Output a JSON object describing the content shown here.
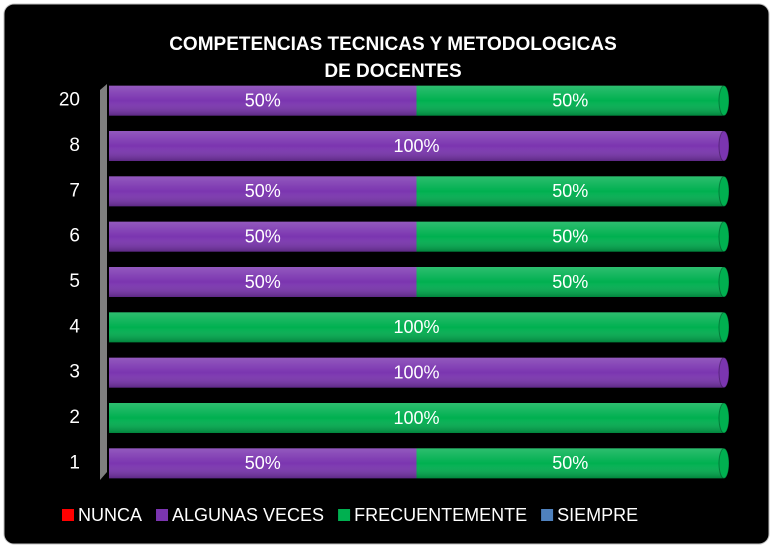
{
  "chart_data": {
    "type": "stacked-bar-horizontal",
    "title": "COMPETENCIAS TECNICAS Y METODOLOGICAS",
    "subtitle": "DE DOCENTES",
    "categories": [
      "20",
      "8",
      "7",
      "6",
      "5",
      "4",
      "3",
      "2",
      "1"
    ],
    "series": [
      {
        "name": "NUNCA",
        "color": "#ff0000",
        "values": [
          0,
          0,
          0,
          0,
          0,
          0,
          0,
          0,
          0
        ]
      },
      {
        "name": "ALGUNAS VECES",
        "color": "#7b35b0",
        "values": [
          50,
          100,
          50,
          50,
          50,
          0,
          100,
          0,
          50
        ],
        "value_labels": [
          "50%",
          "100%",
          "50%",
          "50%",
          "50%",
          null,
          "100%",
          null,
          "50%"
        ]
      },
      {
        "name": "FRECUENTEMENTE",
        "color": "#00b050",
        "values": [
          50,
          0,
          50,
          50,
          50,
          100,
          0,
          100,
          50
        ],
        "value_labels": [
          "50%",
          null,
          "50%",
          "50%",
          "50%",
          "100%",
          null,
          "100%",
          "50%"
        ]
      },
      {
        "name": "SIEMPRE",
        "color": "#4f81bd",
        "values": [
          0,
          0,
          0,
          0,
          0,
          0,
          0,
          0,
          0
        ]
      }
    ],
    "legend": "bottom"
  }
}
